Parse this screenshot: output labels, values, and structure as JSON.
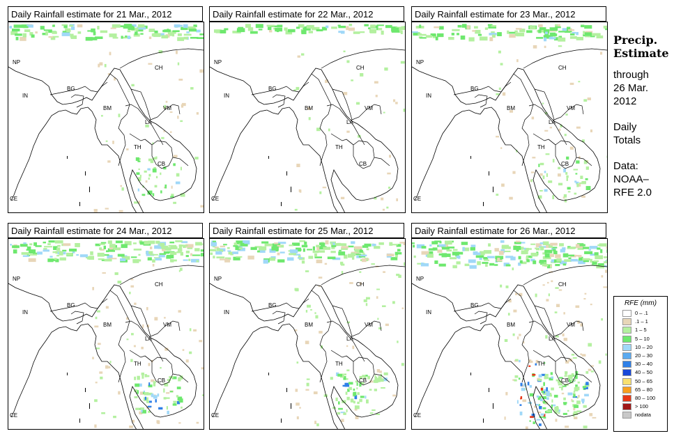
{
  "panels": [
    {
      "title": "Daily Rainfall estimate for  21 Mar., 2012",
      "rain_level": 1
    },
    {
      "title": "Daily Rainfall estimate for  22 Mar., 2012",
      "rain_level": 0
    },
    {
      "title": "Daily Rainfall estimate for  23 Mar., 2012",
      "rain_level": 1
    },
    {
      "title": "Daily Rainfall estimate for  24 Mar., 2012",
      "rain_level": 2
    },
    {
      "title": "Daily Rainfall estimate for  25 Mar., 2012",
      "rain_level": 2
    },
    {
      "title": "Daily Rainfall estimate for  26 Mar., 2012",
      "rain_level": 3
    }
  ],
  "country_labels": {
    "np": "NP",
    "ch": "CH",
    "in": "IN",
    "bg": "BG",
    "bm": "BM",
    "vm": "VM",
    "la": "LA",
    "th": "TH",
    "cb": "CB",
    "ce": "CE"
  },
  "side": {
    "title_line1": "Precip.",
    "title_line2": "Estimate",
    "through": "through",
    "date_line1": "26 Mar.",
    "date_line2": "2012",
    "totals_line1": "Daily",
    "totals_line2": "Totals",
    "data_line1": "Data:",
    "data_line2": "NOAA–",
    "data_line3": "RFE 2.0"
  },
  "legend": {
    "title": "RFE (mm)",
    "items": [
      {
        "label": "0 – .1",
        "color": "#ffffff"
      },
      {
        "label": ".1 – 1",
        "color": "#e8d6b8"
      },
      {
        "label": "1 – 5",
        "color": "#b4f0a0"
      },
      {
        "label": "5 – 10",
        "color": "#6ee86e"
      },
      {
        "label": "10 – 20",
        "color": "#a0d8f8"
      },
      {
        "label": "20 – 30",
        "color": "#5aaaf0"
      },
      {
        "label": "30 – 40",
        "color": "#2f80e8"
      },
      {
        "label": "40 – 50",
        "color": "#1848d8"
      },
      {
        "label": "50 – 65",
        "color": "#f8e070"
      },
      {
        "label": "65 – 80",
        "color": "#f8a020"
      },
      {
        "label": "80 – 100",
        "color": "#e83818"
      },
      {
        "label": "> 100",
        "color": "#a01818"
      },
      {
        "label": "nodata",
        "color": "#c8c8c8"
      }
    ]
  }
}
